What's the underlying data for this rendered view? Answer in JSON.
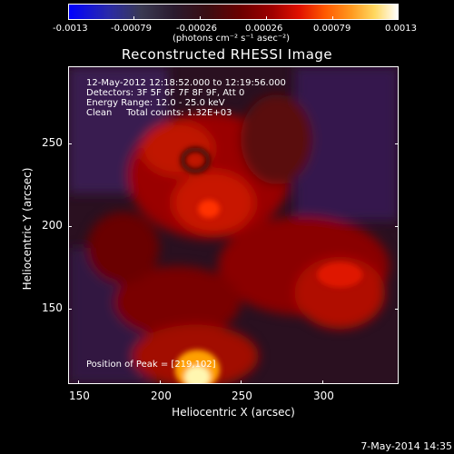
{
  "colorbar": {
    "ticks": [
      "-0.0013",
      "-0.00079",
      "-0.00026",
      "0.00026",
      "0.00079",
      "0.0013"
    ],
    "units": "(photons cm⁻² s⁻¹ asec⁻²)"
  },
  "title": "Reconstructed RHESSI Image",
  "info": {
    "time_range": "12-May-2012 12:18:52.000 to 12:19:56.000",
    "detectors": "Detectors: 3F 5F 6F 7F 8F 9F, Att 0",
    "energy": "Energy Range: 12.0 - 25.0 keV",
    "clean": "Clean     Total counts: 1.32E+03",
    "peak": "Position of Peak = [219,102]"
  },
  "axes": {
    "xlabel": "Heliocentric X (arcsec)",
    "ylabel": "Heliocentric Y (arcsec)",
    "xticks": [
      "150",
      "200",
      "250",
      "300"
    ],
    "yticks": [
      "250",
      "200",
      "150"
    ]
  },
  "footer": {
    "date": "7-May-2014 14:35"
  }
}
